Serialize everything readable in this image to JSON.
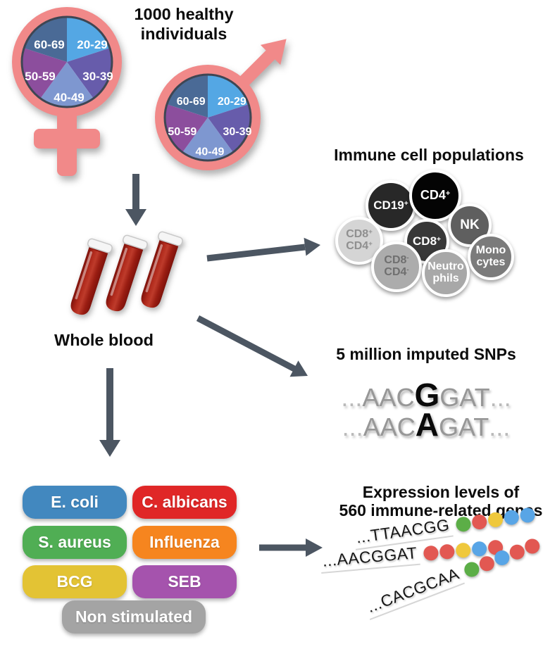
{
  "header": {
    "line1": "1000 healthy",
    "line2": "individuals"
  },
  "age_groups": [
    {
      "label": "20-29",
      "color": "#54A7E4"
    },
    {
      "label": "30-39",
      "color": "#675CAB"
    },
    {
      "label": "40-49",
      "color": "#7E97D0"
    },
    {
      "label": "50-59",
      "color": "#8C4E9D"
    },
    {
      "label": "60-69",
      "color": "#4A6A96"
    }
  ],
  "symbols": {
    "female": "female-symbol",
    "male": "male-symbol",
    "color": "#F18989"
  },
  "whole_blood": {
    "label": "Whole blood",
    "tube_count": 3,
    "tube_color": "#A81F13"
  },
  "immune": {
    "title": "Immune cell populations",
    "cells": [
      {
        "lines": [
          "CD19^+"
        ],
        "fill": "#282828",
        "text_color": "#ffffff"
      },
      {
        "lines": [
          "CD4^+"
        ],
        "fill": "#040404",
        "text_color": "#ffffff"
      },
      {
        "lines": [
          "NK"
        ],
        "fill": "#5F5F5F",
        "text_color": "#ffffff"
      },
      {
        "lines": [
          "CD8^+",
          "CD4^+"
        ],
        "fill": "#D5D5D5",
        "text_color": "#8F8F8F"
      },
      {
        "lines": [
          "CD8^+"
        ],
        "fill": "#383838",
        "text_color": "#ffffff"
      },
      {
        "lines": [
          "Mono",
          "cytes"
        ],
        "fill": "#7B7B7B",
        "text_color": "#ffffff"
      },
      {
        "lines": [
          "CD8^-",
          "CD4^-"
        ],
        "fill": "#ACACAC",
        "text_color": "#6F6F6F"
      },
      {
        "lines": [
          "Neutro",
          "phils"
        ],
        "fill": "#A8A8A8",
        "text_color": "#ffffff"
      }
    ]
  },
  "snps": {
    "title": "5 million imputed SNPs",
    "sequences": [
      {
        "lead": "...",
        "pre": "AAC",
        "variant": "G",
        "post": "GAT",
        "trail": "..."
      },
      {
        "lead": "...",
        "pre": "AAC",
        "variant": "A",
        "post": "GAT",
        "trail": "..."
      }
    ]
  },
  "stimuli": {
    "items": [
      {
        "label": "E. coli",
        "color": "#4288BF"
      },
      {
        "label": "C. albicans",
        "color": "#E02727"
      },
      {
        "label": "S. aureus",
        "color": "#50AE54"
      },
      {
        "label": "Influenza",
        "color": "#F6851F"
      },
      {
        "label": "BCG",
        "color": "#E3C334"
      },
      {
        "label": "SEB",
        "color": "#A553AD"
      },
      {
        "label": "Non stimulated",
        "color": "#A4A4A4"
      }
    ]
  },
  "expression": {
    "title_line1": "Expression levels of",
    "title_line2": "560 immune-related genes",
    "dot_colors": {
      "green": "#5CAE47",
      "red": "#E25852",
      "yellow": "#EFC83C",
      "blue": "#58A5E6"
    },
    "rows": [
      {
        "sequence": "...TTAACGG",
        "dots": [
          "green",
          "red",
          "yellow",
          "blue",
          "blue"
        ]
      },
      {
        "sequence": "...AACGGAT",
        "dots": [
          "red",
          "red",
          "yellow",
          "blue",
          "red"
        ]
      },
      {
        "sequence": "...CACGCAA",
        "dots": [
          "green",
          "red",
          "blue",
          "red",
          "red"
        ]
      }
    ]
  },
  "arrow_color": "#4C5662"
}
